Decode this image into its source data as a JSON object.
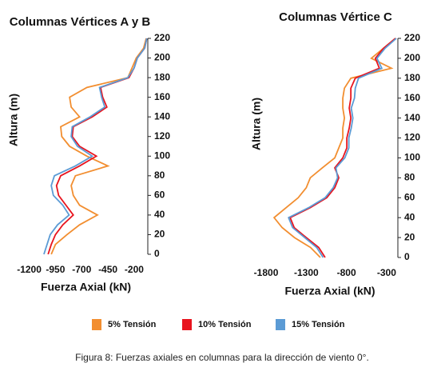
{
  "chart_data": [
    {
      "type": "line",
      "title": "Columnas Vértices A y B",
      "xlabel": "Fuerza Axial (kN)",
      "ylabel": "Altura (m)",
      "y": [
        0,
        10,
        20,
        30,
        40,
        50,
        60,
        70,
        80,
        90,
        100,
        110,
        120,
        130,
        140,
        150,
        160,
        170,
        180,
        190,
        200,
        210,
        220
      ],
      "xlim": [
        -1250,
        -70
      ],
      "xticks": [
        -1200,
        -950,
        -700,
        -450,
        -200
      ],
      "ylim": [
        0,
        220
      ],
      "yticks": [
        0,
        20,
        40,
        60,
        80,
        100,
        120,
        140,
        160,
        180,
        200,
        220
      ],
      "series": [
        {
          "name": "5% Tensión",
          "color": "#f28e30",
          "values": [
            -990,
            -950,
            -840,
            -720,
            -550,
            -720,
            -780,
            -800,
            -760,
            -450,
            -650,
            -815,
            -890,
            -900,
            -720,
            -800,
            -815,
            -650,
            -260,
            -220,
            -180,
            -110,
            -85
          ]
        },
        {
          "name": "10% Tensión",
          "color": "#e8141e",
          "values": [
            -1020,
            -990,
            -950,
            -880,
            -780,
            -850,
            -920,
            -940,
            -900,
            -720,
            -560,
            -720,
            -790,
            -780,
            -600,
            -460,
            -500,
            -520,
            -250,
            -200,
            -170,
            -100,
            -80
          ]
        },
        {
          "name": "15% Tensión",
          "color": "#5b9bd5",
          "values": [
            -1060,
            -1030,
            -1000,
            -930,
            -820,
            -880,
            -970,
            -990,
            -960,
            -760,
            -600,
            -740,
            -800,
            -790,
            -620,
            -480,
            -510,
            -530,
            -260,
            -200,
            -170,
            -100,
            -80
          ]
        }
      ]
    },
    {
      "type": "line",
      "title": "Columnas Vértice C",
      "xlabel": "Fuerza Axial (kN)",
      "ylabel": "Altura (m)",
      "y": [
        0,
        10,
        20,
        30,
        40,
        50,
        60,
        70,
        80,
        90,
        100,
        110,
        120,
        130,
        140,
        150,
        160,
        170,
        180,
        190,
        200,
        210,
        220
      ],
      "xlim": [
        -1850,
        -160
      ],
      "xticks": [
        -1800,
        -1300,
        -800,
        -300
      ],
      "ylim": [
        0,
        220
      ],
      "yticks": [
        0,
        20,
        40,
        60,
        80,
        100,
        120,
        140,
        160,
        180,
        200,
        220
      ],
      "series": [
        {
          "color": "#f28e30",
          "values": [
            -1125,
            -1246,
            -1447,
            -1600,
            -1700,
            -1550,
            -1400,
            -1300,
            -1250,
            -1100,
            -945,
            -895,
            -845,
            -845,
            -825,
            -845,
            -845,
            -825,
            -745,
            -240,
            -490,
            -340,
            -190
          ]
        },
        {
          "color": "#e8141e",
          "values": [
            -1065,
            -1145,
            -1300,
            -1450,
            -1500,
            -1250,
            -1045,
            -945,
            -895,
            -945,
            -845,
            -795,
            -795,
            -765,
            -745,
            -765,
            -745,
            -745,
            -690,
            -390,
            -440,
            -340,
            -190
          ]
        },
        {
          "color": "#5b9bd5",
          "values": [
            -1090,
            -1170,
            -1320,
            -1470,
            -1520,
            -1270,
            -1065,
            -965,
            -910,
            -930,
            -820,
            -770,
            -770,
            -740,
            -720,
            -740,
            -700,
            -690,
            -650,
            -360,
            -420,
            -320,
            -180
          ]
        }
      ]
    }
  ],
  "caption": "Figura 8: Fuerzas axiales en columnas para la dirección de viento 0°."
}
